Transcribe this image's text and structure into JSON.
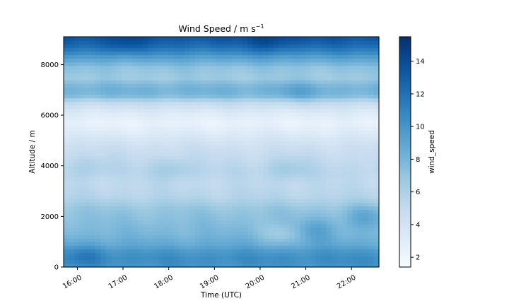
{
  "chart_data": {
    "type": "heatmap",
    "title": "Wind Speed / m s",
    "title_superscript": "−1",
    "xlabel": "Time (UTC)",
    "ylabel": "Altitude / m",
    "colorbar_label": "wind_speed",
    "colormap": "Blues",
    "colorscale_range": [
      1.4,
      15.5
    ],
    "colorscale_ticks": [
      "2",
      "4",
      "6",
      "8",
      "10",
      "12",
      "14"
    ],
    "colorscale_tick_values": [
      2,
      4,
      6,
      8,
      10,
      12,
      14
    ],
    "xlim_hours": [
      15.7,
      22.6
    ],
    "xticks": [
      "16:00",
      "17:00",
      "18:00",
      "19:00",
      "20:00",
      "21:00",
      "22:00"
    ],
    "xtick_hours": [
      16,
      17,
      18,
      19,
      20,
      21,
      22
    ],
    "ylim": [
      0,
      9100
    ],
    "yticks": [
      "0",
      "2000",
      "4000",
      "6000",
      "8000"
    ],
    "ytick_values": [
      0,
      2000,
      4000,
      6000,
      8000
    ],
    "altitude_profile": {
      "altitude_m": [
        0,
        300,
        600,
        900,
        1300,
        1800,
        2300,
        2800,
        3300,
        3800,
        4300,
        4800,
        5300,
        5700,
        6100,
        6500,
        6800,
        7100,
        7500,
        7900,
        8300,
        8700,
        9100
      ],
      "wind_speed": [
        10.0,
        10.5,
        10.0,
        8.8,
        8.0,
        7.5,
        7.0,
        5.6,
        5.2,
        5.4,
        5.0,
        4.4,
        3.2,
        2.4,
        3.2,
        5.0,
        8.0,
        8.2,
        6.6,
        7.2,
        9.4,
        12.0,
        13.6
      ]
    },
    "time_anomalies": [
      {
        "hour_utc": 16.2,
        "altitude_m": 500,
        "delta_wind_speed": 1.2
      },
      {
        "hour_utc": 21.2,
        "altitude_m": 1500,
        "delta_wind_speed": 1.4
      },
      {
        "hour_utc": 22.3,
        "altitude_m": 2000,
        "delta_wind_speed": 1.6
      },
      {
        "hour_utc": 20.5,
        "altitude_m": 1300,
        "delta_wind_speed": -1.5
      },
      {
        "hour_utc": 18.1,
        "altitude_m": 3900,
        "delta_wind_speed": 1.2
      },
      {
        "hour_utc": 20.6,
        "altitude_m": 3900,
        "delta_wind_speed": 1.3
      },
      {
        "hour_utc": 16.3,
        "altitude_m": 4000,
        "delta_wind_speed": 0.9
      },
      {
        "hour_utc": 17.0,
        "altitude_m": 8800,
        "delta_wind_speed": 1.2
      },
      {
        "hour_utc": 20.2,
        "altitude_m": 8900,
        "delta_wind_speed": 1.4
      },
      {
        "hour_utc": 20.8,
        "altitude_m": 6900,
        "delta_wind_speed": 1.0
      }
    ],
    "grid": false
  }
}
